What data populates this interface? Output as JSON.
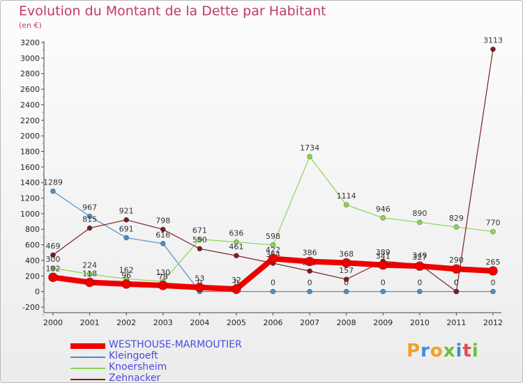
{
  "title": "Evolution du Montant de la Dette par Habitant",
  "unit": "(en €)",
  "brand": {
    "letters": [
      "P",
      "r",
      "o",
      "x",
      "i",
      "t",
      "i"
    ],
    "colors": [
      "#f2a02a",
      "#3a8fd6",
      "#f2a02a",
      "#6cbf3a",
      "#3a8fd6",
      "#e44b4b",
      "#6cbf3a"
    ]
  },
  "chart_data": {
    "type": "line",
    "title": "Evolution du Montant de la Dette par Habitant",
    "ylabel": "(en €)",
    "x": [
      "2000",
      "2001",
      "2002",
      "2003",
      "2004",
      "2005",
      "2006",
      "2007",
      "2008",
      "2009",
      "2010",
      "2011",
      "2012"
    ],
    "ylim": [
      -200,
      3200
    ],
    "yticks": [
      -200,
      0,
      200,
      400,
      600,
      800,
      1000,
      1200,
      1400,
      1600,
      1800,
      2000,
      2200,
      2400,
      2600,
      2800,
      3000,
      3200
    ],
    "grid": false,
    "legend_position": "bottom-left",
    "series": [
      {
        "name": "Kleingoeft",
        "color": "#4a90c8",
        "width": 1.2,
        "dot": 3.5,
        "values": [
          1289,
          967,
          691,
          616,
          0,
          0,
          0,
          0,
          0,
          0,
          0,
          0,
          0
        ]
      },
      {
        "name": "Knoersheim",
        "color": "#8ed455",
        "width": 1.2,
        "dot": 3.5,
        "values": [
          300,
          224,
          162,
          130,
          671,
          636,
          598,
          1734,
          1114,
          946,
          890,
          829,
          770
        ]
      },
      {
        "name": "Zehnacker",
        "color": "#7a1e22",
        "width": 1.2,
        "dot": 3.5,
        "values": [
          469,
          815,
          921,
          798,
          550,
          461,
          364,
          263,
          157,
          389,
          349,
          0,
          3113
        ]
      },
      {
        "name": "WESTHOUSE-MARMOUTIER",
        "color": "#ee0000",
        "width": 8,
        "dot": 6.5,
        "values": [
          182,
          118,
          96,
          78,
          53,
          32,
          422,
          386,
          368,
          341,
          327,
          290,
          265
        ]
      }
    ],
    "legend_order": [
      "WESTHOUSE-MARMOUTIER",
      "Kleingoeft",
      "Knoersheim",
      "Zehnacker"
    ]
  }
}
